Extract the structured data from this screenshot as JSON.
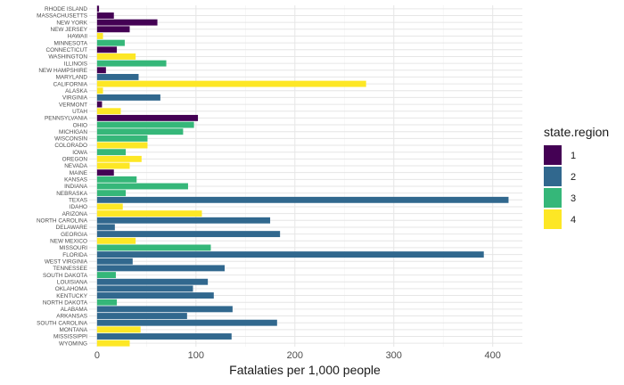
{
  "chart_data": {
    "type": "bar",
    "orientation": "horizontal",
    "xlabel": "Fatalaties per 1,000 people",
    "ylabel": "",
    "xlim": [
      -8,
      430
    ],
    "x_ticks": [
      0,
      100,
      200,
      300,
      400
    ],
    "grid": true,
    "legend": {
      "title": "state.region",
      "placement": "right",
      "entries": [
        {
          "label": "1",
          "color": "#440154"
        },
        {
          "label": "2",
          "color": "#31688E"
        },
        {
          "label": "3",
          "color": "#35B779"
        },
        {
          "label": "4",
          "color": "#FDE725"
        }
      ]
    },
    "bars": [
      {
        "state": "RHODE ISLAND",
        "value": 2,
        "region": "1"
      },
      {
        "state": "MASSACHUSETTS",
        "value": 17,
        "region": "1"
      },
      {
        "state": "NEW YORK",
        "value": 61,
        "region": "1"
      },
      {
        "state": "NEW JERSEY",
        "value": 33,
        "region": "1"
      },
      {
        "state": "HAWAII",
        "value": 6,
        "region": "4"
      },
      {
        "state": "MINNESOTA",
        "value": 28,
        "region": "3"
      },
      {
        "state": "CONNECTICUT",
        "value": 20,
        "region": "1"
      },
      {
        "state": "WASHINGTON",
        "value": 39,
        "region": "4"
      },
      {
        "state": "ILLINOIS",
        "value": 70,
        "region": "3"
      },
      {
        "state": "NEW HAMPSHIRE",
        "value": 9,
        "region": "1"
      },
      {
        "state": "MARYLAND",
        "value": 42,
        "region": "2"
      },
      {
        "state": "CALIFORNIA",
        "value": 272,
        "region": "4"
      },
      {
        "state": "ALASKA",
        "value": 6,
        "region": "4"
      },
      {
        "state": "VIRGINIA",
        "value": 64,
        "region": "2"
      },
      {
        "state": "VERMONT",
        "value": 5,
        "region": "1"
      },
      {
        "state": "UTAH",
        "value": 24,
        "region": "4"
      },
      {
        "state": "PENNSYLVANIA",
        "value": 102,
        "region": "1"
      },
      {
        "state": "OHIO",
        "value": 98,
        "region": "3"
      },
      {
        "state": "MICHIGAN",
        "value": 87,
        "region": "3"
      },
      {
        "state": "WISCONSIN",
        "value": 51,
        "region": "3"
      },
      {
        "state": "COLORADO",
        "value": 51,
        "region": "4"
      },
      {
        "state": "IOWA",
        "value": 29,
        "region": "3"
      },
      {
        "state": "OREGON",
        "value": 45,
        "region": "4"
      },
      {
        "state": "NEVADA",
        "value": 33,
        "region": "4"
      },
      {
        "state": "MAINE",
        "value": 17,
        "region": "1"
      },
      {
        "state": "KANSAS",
        "value": 40,
        "region": "3"
      },
      {
        "state": "INDIANA",
        "value": 92,
        "region": "3"
      },
      {
        "state": "NEBRASKA",
        "value": 29,
        "region": "3"
      },
      {
        "state": "TEXAS",
        "value": 416,
        "region": "2"
      },
      {
        "state": "IDAHO",
        "value": 26,
        "region": "4"
      },
      {
        "state": "ARIZONA",
        "value": 106,
        "region": "4"
      },
      {
        "state": "NORTH CAROLINA",
        "value": 175,
        "region": "2"
      },
      {
        "state": "DELAWARE",
        "value": 18,
        "region": "2"
      },
      {
        "state": "GEORGIA",
        "value": 185,
        "region": "2"
      },
      {
        "state": "NEW MEXICO",
        "value": 39,
        "region": "4"
      },
      {
        "state": "MISSOURI",
        "value": 115,
        "region": "3"
      },
      {
        "state": "FLORIDA",
        "value": 391,
        "region": "2"
      },
      {
        "state": "WEST VIRGINIA",
        "value": 36,
        "region": "2"
      },
      {
        "state": "TENNESSEE",
        "value": 129,
        "region": "2"
      },
      {
        "state": "SOUTH DAKOTA",
        "value": 19,
        "region": "3"
      },
      {
        "state": "LOUISIANA",
        "value": 112,
        "region": "2"
      },
      {
        "state": "OKLAHOMA",
        "value": 97,
        "region": "2"
      },
      {
        "state": "KENTUCKY",
        "value": 118,
        "region": "2"
      },
      {
        "state": "NORTH DAKOTA",
        "value": 20,
        "region": "3"
      },
      {
        "state": "ALABAMA",
        "value": 137,
        "region": "2"
      },
      {
        "state": "ARKANSAS",
        "value": 91,
        "region": "2"
      },
      {
        "state": "SOUTH CAROLINA",
        "value": 182,
        "region": "2"
      },
      {
        "state": "MONTANA",
        "value": 44,
        "region": "4"
      },
      {
        "state": "MISSISSIPPI",
        "value": 136,
        "region": "2"
      },
      {
        "state": "WYOMING",
        "value": 33,
        "region": "4"
      }
    ]
  }
}
